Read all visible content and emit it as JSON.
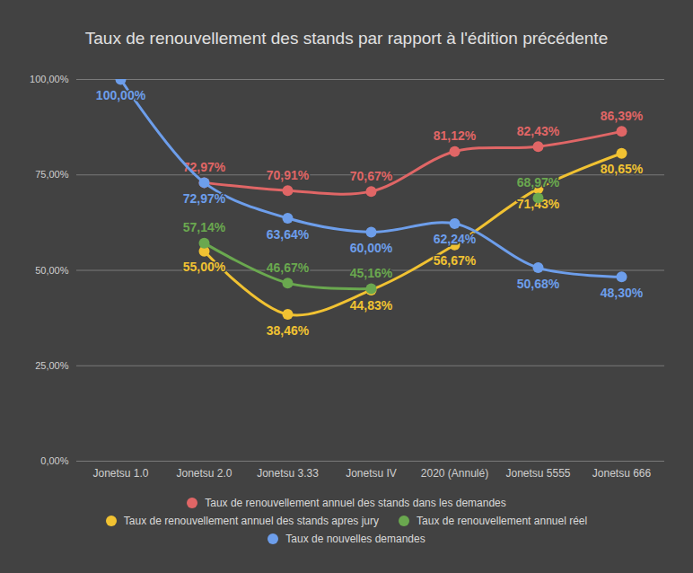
{
  "chart_data": {
    "type": "line",
    "title": "Taux de renouvellement des stands par rapport à l'édition précédente",
    "categories": [
      "Jonetsu 1.0",
      "Jonetsu 2.0",
      "Jonetsu 3.33",
      "Jonetsu IV",
      "2020 (Annulé)",
      "Jonetsu 5555",
      "Jonetsu 666"
    ],
    "series": [
      {
        "name": "Taux de renouvellement annuel des stands dans les demandes",
        "color": "#e06666",
        "marker": "circle",
        "line_style": "solid",
        "values": [
          null,
          72.97,
          70.91,
          70.67,
          81.12,
          82.43,
          86.39
        ],
        "value_labels": [
          null,
          "72,97%",
          "70,91%",
          "70,67%",
          "81,12%",
          "82,43%",
          "86,39%"
        ]
      },
      {
        "name": "Taux de renouvellement annuel des stands apres jury",
        "color": "#f1c232",
        "marker": "circle",
        "line_style": "solid",
        "values": [
          null,
          55.0,
          38.46,
          44.83,
          56.67,
          71.43,
          80.65
        ],
        "value_labels": [
          null,
          "55,00%",
          "38,46%",
          "44,83%",
          "56,67%",
          "71,43%",
          "80,65%"
        ]
      },
      {
        "name": "Taux de renouvellement annuel réel",
        "color": "#6aa84f",
        "marker": "circle",
        "line_style": "solid",
        "values": [
          null,
          57.14,
          46.67,
          45.16,
          null,
          68.97,
          null
        ],
        "value_labels": [
          null,
          "57,14%",
          "46,67%",
          "45,16%",
          null,
          "68,97%",
          null
        ]
      },
      {
        "name": "Taux de nouvelles demandes",
        "color": "#6d9eeb",
        "marker": "circle",
        "line_style": "solid",
        "values": [
          100.0,
          72.97,
          63.64,
          60.0,
          62.24,
          50.68,
          48.3
        ],
        "value_labels": [
          "100,00%",
          "72,97%",
          "63,64%",
          "60,00%",
          "62,24%",
          "50,68%",
          "48,30%"
        ]
      }
    ],
    "ylim": [
      0,
      100
    ],
    "yticks": [
      {
        "value": 0,
        "label": "0,00%"
      },
      {
        "value": 25,
        "label": "25,00%"
      },
      {
        "value": 50,
        "label": "50,00%"
      },
      {
        "value": 75,
        "label": "75,00%"
      },
      {
        "value": 100,
        "label": "100,00%"
      }
    ],
    "grid": true,
    "legend": "bottom",
    "data_labels": true
  }
}
